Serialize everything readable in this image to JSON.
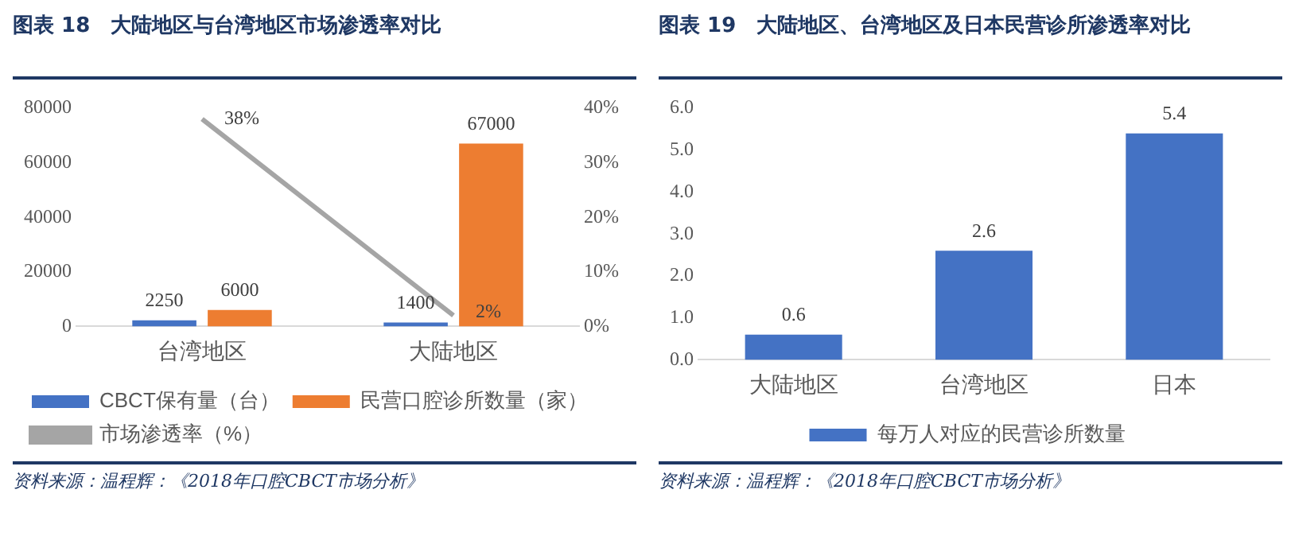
{
  "chart_data": [
    {
      "type": "bar",
      "title": "图表 18　大陆地区与台湾地区市场渗透率对比",
      "categories": [
        "台湾地区",
        "大陆地区"
      ],
      "series": [
        {
          "name": "CBCT保有量（台）",
          "color": "#4472c4",
          "values": [
            2250,
            1400
          ],
          "value_labels": [
            "2250",
            "1400"
          ]
        },
        {
          "name": "民营口腔诊所数量（家）",
          "color": "#ed7d31",
          "values": [
            6000,
            67000
          ],
          "value_labels": [
            "6000",
            "67000"
          ]
        },
        {
          "name": "市场渗透率（%）",
          "type": "line",
          "axis": "y2",
          "color": "#a5a5a5",
          "values": [
            38,
            2
          ],
          "value_labels": [
            "38%",
            "2%"
          ]
        }
      ],
      "ylim": [
        0,
        80000
      ],
      "yticks": [
        0,
        20000,
        40000,
        60000,
        80000
      ],
      "y2lim": [
        0,
        40
      ],
      "y2ticks": [
        {
          "value": 0,
          "label": "0%"
        },
        {
          "value": 10,
          "label": "10%"
        },
        {
          "value": 20,
          "label": "20%"
        },
        {
          "value": 30,
          "label": "30%"
        },
        {
          "value": 40,
          "label": "40%"
        }
      ],
      "grid": false,
      "legend": "bottom",
      "marker": "none",
      "annotations": [
        "资料来源：温程辉：《2018年口腔CBCT市场分析》"
      ]
    },
    {
      "type": "bar",
      "title": "图表 19　大陆地区、台湾地区及日本民营诊所渗透率对比",
      "categories": [
        "大陆地区",
        "台湾地区",
        "日本"
      ],
      "series": [
        {
          "name": "每万人对应的民营诊所数量",
          "color": "#4472c4",
          "values": [
            0.6,
            2.6,
            5.4
          ],
          "value_labels": [
            "0.6",
            "2.6",
            "5.4"
          ]
        }
      ],
      "ylim": [
        0,
        6
      ],
      "yticks": [
        {
          "value": 0,
          "label": "0.0"
        },
        {
          "value": 1,
          "label": "1.0"
        },
        {
          "value": 2,
          "label": "2.0"
        },
        {
          "value": 3,
          "label": "3.0"
        },
        {
          "value": 4,
          "label": "4.0"
        },
        {
          "value": 5,
          "label": "5.0"
        },
        {
          "value": 6,
          "label": "6.0"
        }
      ],
      "grid": false,
      "legend": "bottom",
      "annotations": [
        "资料来源：温程辉：《2018年口腔CBCT市场分析》"
      ]
    }
  ]
}
